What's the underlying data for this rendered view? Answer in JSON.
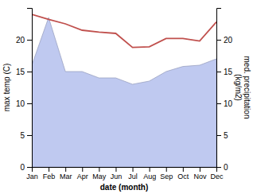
{
  "chart_data": {
    "type": "line",
    "categories": [
      "Jan",
      "Feb",
      "Mar",
      "Apr",
      "May",
      "Jun",
      "Jul",
      "Aug",
      "Sep",
      "Oct",
      "Nov",
      "Dec"
    ],
    "series": [
      {
        "type": "area",
        "color": "#bfc9f0",
        "axis": "y2",
        "values": [
          16.0,
          23.5,
          15.0,
          15.0,
          14.0,
          14.0,
          13.0,
          13.5,
          15.0,
          15.8,
          16.0,
          17.0
        ]
      },
      {
        "type": "line",
        "color": "#c0504d",
        "values": [
          24.0,
          23.2,
          22.5,
          21.5,
          21.2,
          21.0,
          18.8,
          18.9,
          20.2,
          20.2,
          19.8,
          22.8
        ]
      }
    ],
    "x_label": "date (month)",
    "y_label": "max temp (C)",
    "y2_label": "med. precipitation\n(kg/m2)",
    "ylim": [
      0,
      25
    ],
    "yticks": [
      0,
      5,
      10,
      15,
      20
    ],
    "y2lim": [
      0,
      25
    ],
    "y2ticks": [
      0,
      5,
      10,
      15,
      20
    ],
    "grid": false
  }
}
